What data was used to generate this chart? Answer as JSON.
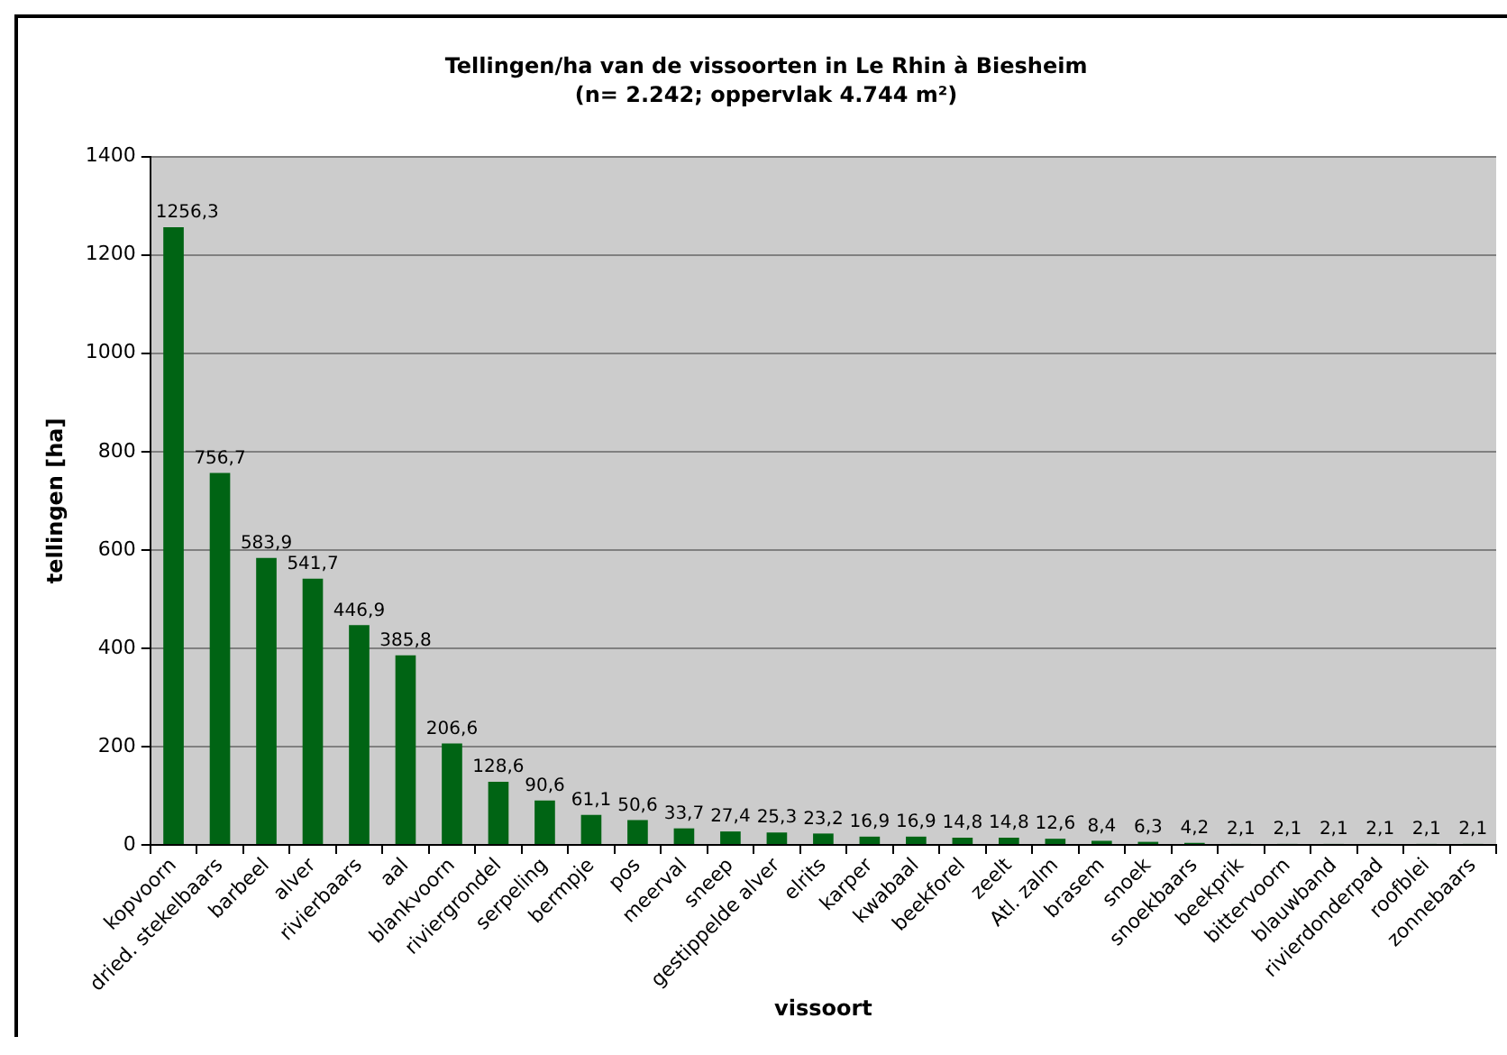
{
  "chart_data": {
    "type": "bar",
    "title": "Tellingen/ha van de vissoorten in Le Rhin à Biesheim",
    "subtitle": "(n= 2.242; oppervlak 4.744 m²)",
    "xlabel": "vissoort",
    "ylabel": "tellingen [ha]",
    "categories": [
      "kopvoorn",
      "dried. stekelbaars",
      "barbeel",
      "alver",
      "rivierbaars",
      "aal",
      "blankvoorn",
      "riviergrondel",
      "serpeling",
      "bermpje",
      "pos",
      "meerval",
      "sneep",
      "gestippelde alver",
      "elrits",
      "karper",
      "kwabaal",
      "beekforel",
      "zeelt",
      "Atl. zalm",
      "brasem",
      "snoek",
      "snoekbaars",
      "beekprik",
      "bittervoorn",
      "blauwband",
      "rivierdonderpad",
      "roofblei",
      "zonnebaars"
    ],
    "values": [
      1256.3,
      756.7,
      583.9,
      541.7,
      446.9,
      385.8,
      206.6,
      128.6,
      90.6,
      61.1,
      50.6,
      33.7,
      27.4,
      25.3,
      23.2,
      16.9,
      16.9,
      14.8,
      14.8,
      12.6,
      8.4,
      6.3,
      4.2,
      2.1,
      2.1,
      2.1,
      2.1,
      2.1,
      2.1
    ],
    "value_labels": [
      "1256,3",
      "756,7",
      "583,9",
      "541,7",
      "446,9",
      "385,8",
      "206,6",
      "128,6",
      "90,6",
      "61,1",
      "50,6",
      "33,7",
      "27,4",
      "25,3",
      "23,2",
      "16,9",
      "16,9",
      "14,8",
      "14,8",
      "12,6",
      "8,4",
      "6,3",
      "4,2",
      "2,1",
      "2,1",
      "2,1",
      "2,1",
      "2,1",
      "2,1"
    ],
    "color": "#006414",
    "ylim": [
      0,
      1400
    ],
    "yticks": [
      0,
      200,
      400,
      600,
      800,
      1000,
      1200,
      1400
    ],
    "grid": "y",
    "legend": false
  }
}
